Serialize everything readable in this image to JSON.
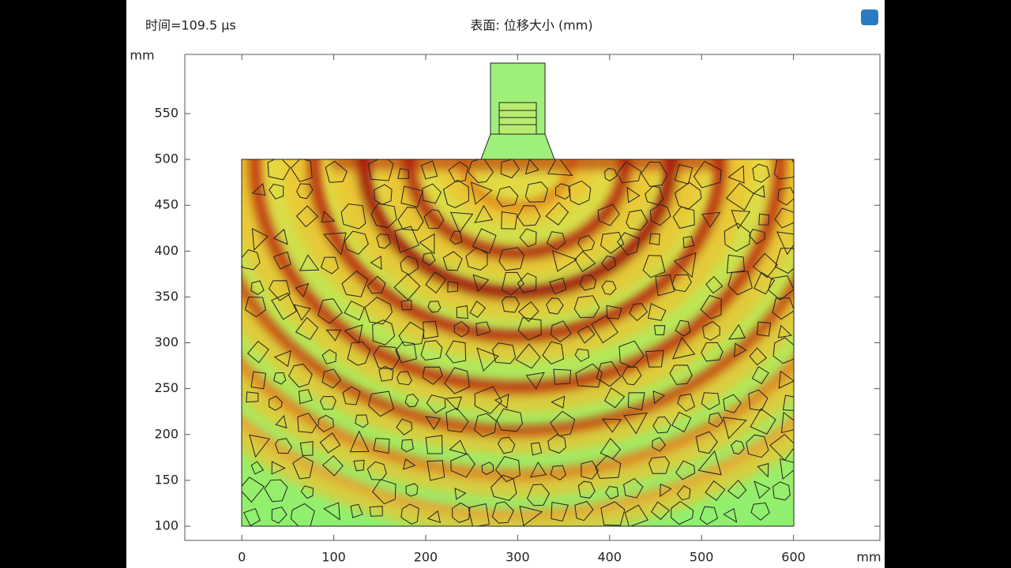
{
  "chart_data": {
    "type": "field",
    "title": "表面: 位移大小 (mm)",
    "subtitle": "时间=109.5 µs",
    "xlabel": "mm",
    "ylabel": "mm",
    "xlim": [
      -62,
      694
    ],
    "ylim": [
      84.5,
      614.5
    ],
    "xticks": [
      0,
      100,
      200,
      300,
      400,
      500,
      600
    ],
    "yticks": [
      100,
      150,
      200,
      250,
      300,
      350,
      400,
      450,
      500,
      550
    ]
  }
}
